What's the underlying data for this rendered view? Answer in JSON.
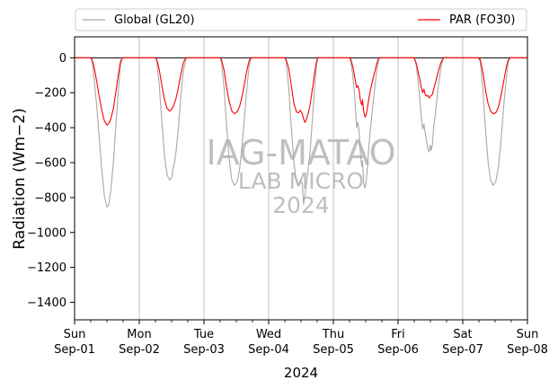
{
  "chart_data": {
    "type": "line",
    "title": "",
    "xlabel": "2024",
    "ylabel": "Radiation (Wm−2)",
    "ylim": [
      -1500,
      120
    ],
    "yticks": [
      0,
      -200,
      -400,
      -600,
      -800,
      -1000,
      -1200,
      -1400
    ],
    "xlim_days": [
      0,
      7
    ],
    "xticks": [
      {
        "day": "Sun",
        "date": "Sep-01"
      },
      {
        "day": "Mon",
        "date": "Sep-02"
      },
      {
        "day": "Tue",
        "date": "Sep-03"
      },
      {
        "day": "Wed",
        "date": "Sep-04"
      },
      {
        "day": "Thu",
        "date": "Sep-05"
      },
      {
        "day": "Fri",
        "date": "Sep-06"
      },
      {
        "day": "Sat",
        "date": "Sep-07"
      },
      {
        "day": "Sun",
        "date": "Sep-08"
      }
    ],
    "grid": "vertical at day boundaries",
    "legend_position": "above plot, full width",
    "watermark": [
      "IAG-MATAO",
      "LAB MICRO",
      "2024"
    ],
    "series": [
      {
        "name": "Global (GL20)",
        "color": "#a9a9a9",
        "points": [
          [
            0.0,
            0
          ],
          [
            0.25,
            0
          ],
          [
            0.27,
            -20
          ],
          [
            0.3,
            -110
          ],
          [
            0.34,
            -270
          ],
          [
            0.38,
            -450
          ],
          [
            0.42,
            -640
          ],
          [
            0.46,
            -790
          ],
          [
            0.5,
            -855
          ],
          [
            0.53,
            -840
          ],
          [
            0.56,
            -760
          ],
          [
            0.6,
            -600
          ],
          [
            0.64,
            -380
          ],
          [
            0.68,
            -170
          ],
          [
            0.71,
            -40
          ],
          [
            0.74,
            0
          ],
          [
            1.25,
            0
          ],
          [
            1.27,
            -20
          ],
          [
            1.31,
            -160
          ],
          [
            1.35,
            -370
          ],
          [
            1.39,
            -560
          ],
          [
            1.43,
            -670
          ],
          [
            1.47,
            -700
          ],
          [
            1.5,
            -685
          ],
          [
            1.53,
            -620
          ],
          [
            1.55,
            -590
          ],
          [
            1.57,
            -530
          ],
          [
            1.6,
            -420
          ],
          [
            1.64,
            -230
          ],
          [
            1.68,
            -80
          ],
          [
            1.72,
            -10
          ],
          [
            1.74,
            0
          ],
          [
            2.25,
            0
          ],
          [
            2.27,
            -20
          ],
          [
            2.31,
            -170
          ],
          [
            2.35,
            -390
          ],
          [
            2.39,
            -580
          ],
          [
            2.43,
            -700
          ],
          [
            2.47,
            -730
          ],
          [
            2.51,
            -715
          ],
          [
            2.55,
            -640
          ],
          [
            2.59,
            -500
          ],
          [
            2.63,
            -320
          ],
          [
            2.67,
            -150
          ],
          [
            2.7,
            -40
          ],
          [
            2.73,
            0
          ],
          [
            3.25,
            0
          ],
          [
            3.27,
            -20
          ],
          [
            3.31,
            -170
          ],
          [
            3.35,
            -400
          ],
          [
            3.39,
            -600
          ],
          [
            3.43,
            -710
          ],
          [
            3.46,
            -735
          ],
          [
            3.49,
            -700
          ],
          [
            3.52,
            -720
          ],
          [
            3.54,
            -840
          ],
          [
            3.56,
            -790
          ],
          [
            3.58,
            -730
          ],
          [
            3.61,
            -640
          ],
          [
            3.64,
            -540
          ],
          [
            3.68,
            -330
          ],
          [
            3.71,
            -170
          ],
          [
            3.74,
            -40
          ],
          [
            3.76,
            0
          ],
          [
            4.25,
            0
          ],
          [
            4.27,
            -20
          ],
          [
            4.3,
            -100
          ],
          [
            4.33,
            -220
          ],
          [
            4.36,
            -400
          ],
          [
            4.38,
            -370
          ],
          [
            4.4,
            -430
          ],
          [
            4.42,
            -560
          ],
          [
            4.44,
            -620
          ],
          [
            4.45,
            -590
          ],
          [
            4.47,
            -720
          ],
          [
            4.49,
            -745
          ],
          [
            4.51,
            -700
          ],
          [
            4.53,
            -610
          ],
          [
            4.55,
            -500
          ],
          [
            4.57,
            -420
          ],
          [
            4.6,
            -310
          ],
          [
            4.64,
            -170
          ],
          [
            4.68,
            -50
          ],
          [
            4.71,
            0
          ],
          [
            5.25,
            0
          ],
          [
            5.28,
            -40
          ],
          [
            5.31,
            -130
          ],
          [
            5.34,
            -260
          ],
          [
            5.36,
            -340
          ],
          [
            5.38,
            -410
          ],
          [
            5.4,
            -380
          ],
          [
            5.42,
            -430
          ],
          [
            5.44,
            -480
          ],
          [
            5.46,
            -520
          ],
          [
            5.48,
            -540
          ],
          [
            5.5,
            -500
          ],
          [
            5.51,
            -530
          ],
          [
            5.53,
            -500
          ],
          [
            5.55,
            -400
          ],
          [
            5.58,
            -310
          ],
          [
            5.62,
            -170
          ],
          [
            5.66,
            -60
          ],
          [
            5.7,
            0
          ],
          [
            6.24,
            0
          ],
          [
            6.27,
            -20
          ],
          [
            6.31,
            -170
          ],
          [
            6.35,
            -400
          ],
          [
            6.39,
            -590
          ],
          [
            6.43,
            -700
          ],
          [
            6.47,
            -730
          ],
          [
            6.51,
            -710
          ],
          [
            6.55,
            -630
          ],
          [
            6.59,
            -480
          ],
          [
            6.63,
            -290
          ],
          [
            6.67,
            -130
          ],
          [
            6.7,
            -30
          ],
          [
            6.73,
            0
          ],
          [
            7.0,
            0
          ]
        ]
      },
      {
        "name": "PAR (FO30)",
        "color": "#ff0000",
        "points": [
          [
            0.0,
            0
          ],
          [
            0.25,
            0
          ],
          [
            0.27,
            -10
          ],
          [
            0.3,
            -50
          ],
          [
            0.34,
            -130
          ],
          [
            0.38,
            -220
          ],
          [
            0.42,
            -300
          ],
          [
            0.46,
            -360
          ],
          [
            0.5,
            -385
          ],
          [
            0.53,
            -375
          ],
          [
            0.56,
            -350
          ],
          [
            0.6,
            -290
          ],
          [
            0.64,
            -190
          ],
          [
            0.68,
            -90
          ],
          [
            0.71,
            -20
          ],
          [
            0.74,
            0
          ],
          [
            1.25,
            0
          ],
          [
            1.27,
            -10
          ],
          [
            1.31,
            -70
          ],
          [
            1.35,
            -160
          ],
          [
            1.39,
            -240
          ],
          [
            1.43,
            -290
          ],
          [
            1.47,
            -305
          ],
          [
            1.5,
            -295
          ],
          [
            1.53,
            -275
          ],
          [
            1.57,
            -230
          ],
          [
            1.6,
            -180
          ],
          [
            1.64,
            -100
          ],
          [
            1.68,
            -30
          ],
          [
            1.72,
            0
          ],
          [
            2.25,
            0
          ],
          [
            2.27,
            -10
          ],
          [
            2.31,
            -70
          ],
          [
            2.35,
            -170
          ],
          [
            2.39,
            -250
          ],
          [
            2.43,
            -305
          ],
          [
            2.47,
            -320
          ],
          [
            2.51,
            -310
          ],
          [
            2.55,
            -280
          ],
          [
            2.59,
            -220
          ],
          [
            2.63,
            -140
          ],
          [
            2.67,
            -60
          ],
          [
            2.7,
            -15
          ],
          [
            2.73,
            0
          ],
          [
            3.25,
            0
          ],
          [
            3.27,
            -10
          ],
          [
            3.31,
            -60
          ],
          [
            3.35,
            -160
          ],
          [
            3.39,
            -260
          ],
          [
            3.43,
            -310
          ],
          [
            3.46,
            -315
          ],
          [
            3.49,
            -300
          ],
          [
            3.52,
            -320
          ],
          [
            3.54,
            -350
          ],
          [
            3.56,
            -370
          ],
          [
            3.58,
            -355
          ],
          [
            3.61,
            -320
          ],
          [
            3.64,
            -270
          ],
          [
            3.68,
            -170
          ],
          [
            3.71,
            -90
          ],
          [
            3.74,
            -20
          ],
          [
            3.76,
            0
          ],
          [
            4.25,
            0
          ],
          [
            4.27,
            -10
          ],
          [
            4.3,
            -50
          ],
          [
            4.33,
            -110
          ],
          [
            4.36,
            -170
          ],
          [
            4.38,
            -160
          ],
          [
            4.4,
            -190
          ],
          [
            4.42,
            -250
          ],
          [
            4.44,
            -270
          ],
          [
            4.45,
            -240
          ],
          [
            4.47,
            -310
          ],
          [
            4.49,
            -340
          ],
          [
            4.51,
            -320
          ],
          [
            4.53,
            -280
          ],
          [
            4.55,
            -230
          ],
          [
            4.57,
            -190
          ],
          [
            4.6,
            -140
          ],
          [
            4.64,
            -80
          ],
          [
            4.68,
            -20
          ],
          [
            4.71,
            0
          ],
          [
            5.25,
            0
          ],
          [
            5.28,
            -30
          ],
          [
            5.31,
            -80
          ],
          [
            5.34,
            -130
          ],
          [
            5.36,
            -170
          ],
          [
            5.38,
            -200
          ],
          [
            5.4,
            -180
          ],
          [
            5.42,
            -210
          ],
          [
            5.44,
            -220
          ],
          [
            5.46,
            -215
          ],
          [
            5.48,
            -230
          ],
          [
            5.5,
            -220
          ],
          [
            5.53,
            -210
          ],
          [
            5.55,
            -180
          ],
          [
            5.58,
            -140
          ],
          [
            5.62,
            -80
          ],
          [
            5.66,
            -30
          ],
          [
            5.7,
            0
          ],
          [
            6.24,
            0
          ],
          [
            6.27,
            -10
          ],
          [
            6.31,
            -80
          ],
          [
            6.35,
            -180
          ],
          [
            6.39,
            -260
          ],
          [
            6.43,
            -305
          ],
          [
            6.47,
            -320
          ],
          [
            6.51,
            -315
          ],
          [
            6.55,
            -285
          ],
          [
            6.59,
            -220
          ],
          [
            6.63,
            -140
          ],
          [
            6.67,
            -60
          ],
          [
            6.7,
            -15
          ],
          [
            6.73,
            0
          ],
          [
            7.0,
            0
          ]
        ]
      }
    ]
  }
}
